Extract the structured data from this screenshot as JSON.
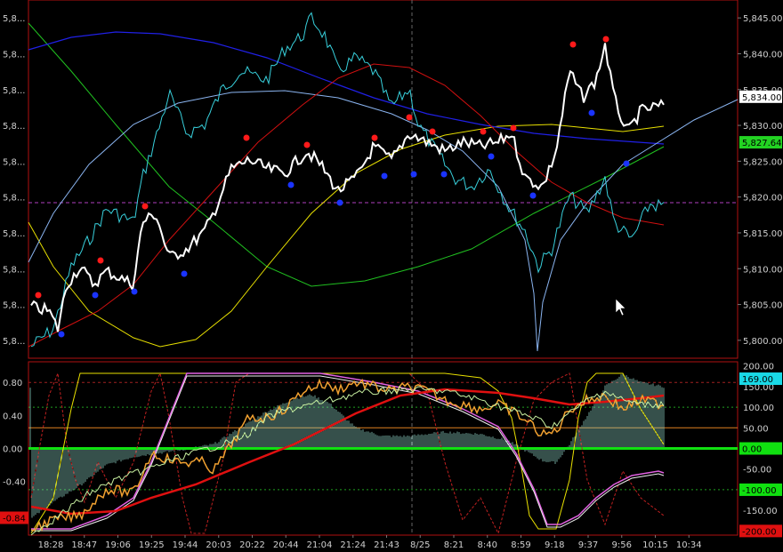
{
  "top_panel": {
    "left_ticks": [
      "5,8...",
      "5,8...",
      "5,8...",
      "5,8...",
      "5,8...",
      "5,8...",
      "5,8...",
      "5,8...",
      "5,8...",
      "5,8..."
    ],
    "right_ticks": [
      "5,845.00",
      "5,840.00",
      "5,835.00",
      "5,830.00",
      "5,825.00",
      "5,820.00",
      "5,815.00",
      "5,810.00",
      "5,805.00",
      "5,800.00"
    ],
    "right_range": [
      5797.5,
      5847.5
    ],
    "badges": [
      {
        "label": "5,834.00",
        "value": 5834.0,
        "bg": "#ffffff",
        "fg": "#000000"
      },
      {
        "label": "5,827.64",
        "value": 5827.64,
        "bg": "#22d322",
        "fg": "#000000"
      }
    ]
  },
  "bottom_panel": {
    "left_ticks": [
      "0.80",
      "0.40",
      "0.00",
      "-0.40",
      "-0.80"
    ],
    "right_ticks": [
      "200.00",
      "150.00",
      "100.00",
      "50.00",
      "0.00",
      "-50.00",
      "-100.00",
      "-150.00",
      "-200.00"
    ],
    "right_range": [
      -210,
      210
    ],
    "left_range": [
      -1.05,
      1.05
    ],
    "badges_right": [
      {
        "label": "169.00",
        "value": 169,
        "bg": "#19d9e6",
        "fg": "#000000"
      },
      {
        "label": "0.00",
        "value": 0,
        "bg": "#10e010",
        "fg": "#000000"
      },
      {
        "label": "-100.00",
        "value": -100,
        "bg": "#10e010",
        "fg": "#000000"
      },
      {
        "label": "-200.00",
        "value": -200,
        "bg": "#e01010",
        "fg": "#000000"
      }
    ],
    "badge_left": {
      "label": "-0.84",
      "value": -0.84,
      "bg": "#e01010",
      "fg": "#000000"
    }
  },
  "time_axis": [
    "18:28",
    "18:47",
    "19:06",
    "19:25",
    "19:44",
    "20:03",
    "20:22",
    "20:44",
    "21:04",
    "21:24",
    "21:43",
    "8/25",
    "8:21",
    "8:40",
    "8:59",
    "9:18",
    "9:37",
    "9:56",
    "10:15",
    "10:34"
  ],
  "colors": {
    "price": "#ffffff",
    "cyan": "#38d0dc",
    "blue": "#2020e6",
    "lightblue": "#8ab4f0",
    "red": "#d01010",
    "yellow": "#e8e000",
    "green": "#20c020",
    "dot_red": "#ff1a1a",
    "dot_blue": "#1a33ff",
    "histogram": "#8fd6c8",
    "border": "#b01010"
  }
}
